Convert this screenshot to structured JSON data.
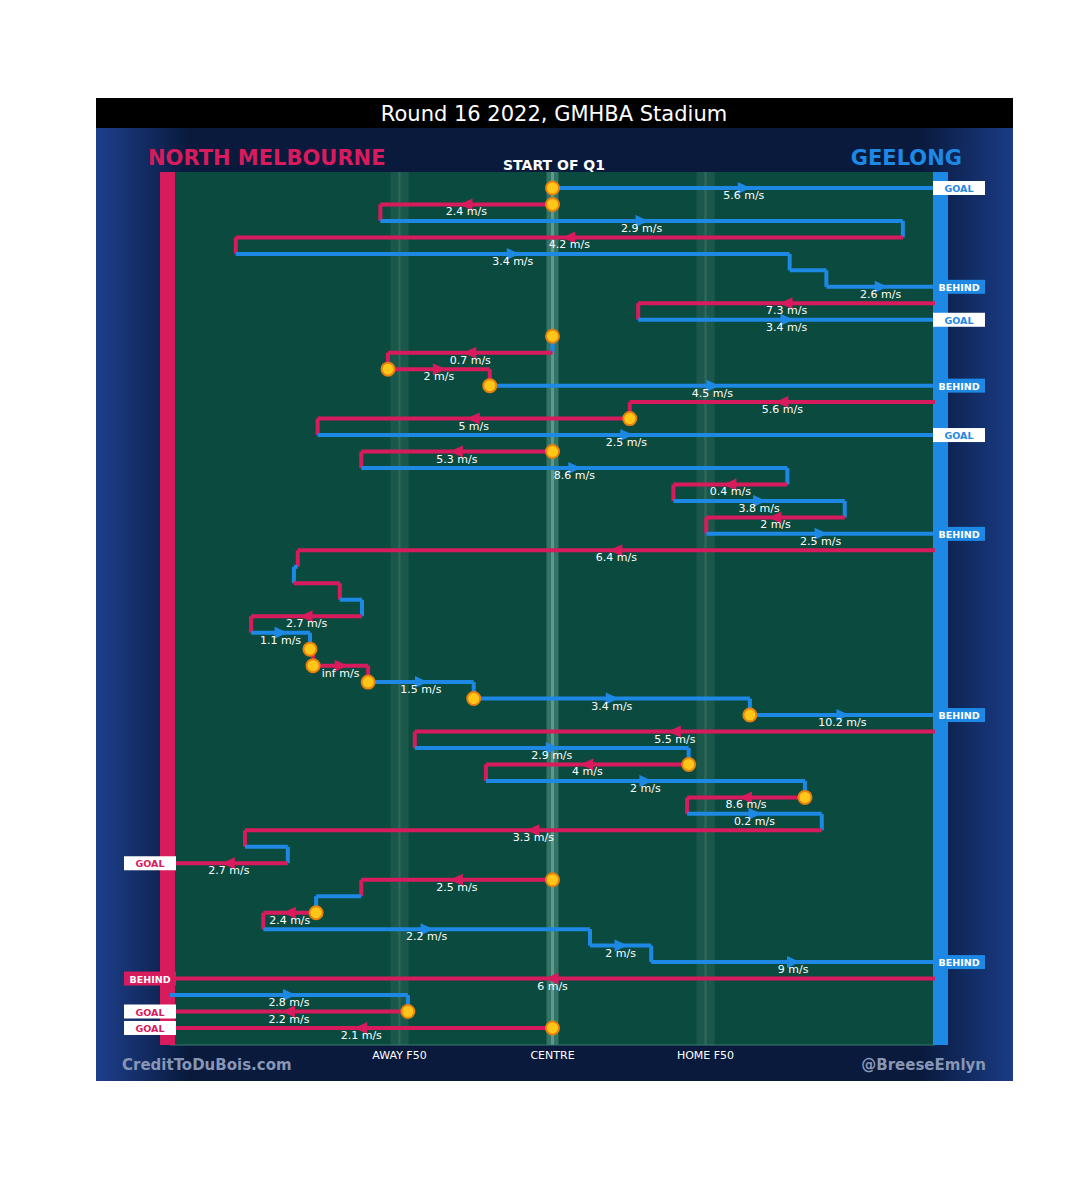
{
  "chart_data": {
    "type": "possession-chain",
    "title": "Round 16 2022, GMHBA Stadium",
    "subtitle": "START OF Q1",
    "teams": [
      {
        "name": "NORTH MELBOURNE",
        "color": "#d81b5c"
      },
      {
        "name": "GEELONG",
        "color": "#1e88e5"
      }
    ],
    "unit": "m/s",
    "xlim": [
      0,
      100
    ],
    "xticks": [
      {
        "value": 30,
        "label": "AWAY F50"
      },
      {
        "value": 50,
        "label": "CENTRE"
      },
      {
        "value": 70,
        "label": "HOME F50"
      }
    ],
    "segments": [
      {
        "team": "GEELONG",
        "from": 50,
        "to": 100,
        "speed": 5.6,
        "marker": "stoppage",
        "outcome": "GOAL"
      },
      {
        "team": "NORTH MELBOURNE",
        "from": 50,
        "to": 27.5,
        "speed": 2.4,
        "marker": "stoppage"
      },
      {
        "team": "GEELONG",
        "from": 27.5,
        "to": 95.8,
        "speed": 2.9
      },
      {
        "team": "NORTH MELBOURNE",
        "from": 95.8,
        "to": 8.6,
        "speed": 4.2
      },
      {
        "team": "GEELONG",
        "from": 8.6,
        "to": 81,
        "speed": 3.4
      },
      {
        "team": "GEELONG",
        "from": 81,
        "to": 85.8,
        "speed": null
      },
      {
        "team": "GEELONG",
        "from": 85.8,
        "to": 100,
        "speed": 2.6,
        "outcome": "BEHIND"
      },
      {
        "team": "NORTH MELBOURNE",
        "from": 100,
        "to": 61.2,
        "speed": 7.3
      },
      {
        "team": "GEELONG",
        "from": 61.2,
        "to": 100,
        "speed": 3.4,
        "outcome": "GOAL"
      },
      {
        "team": "GEELONG",
        "from": 50,
        "to": 50,
        "speed": null,
        "marker": "stoppage"
      },
      {
        "team": "NORTH MELBOURNE",
        "from": 50,
        "to": 28.5,
        "speed": 0.7
      },
      {
        "team": "NORTH MELBOURNE",
        "from": 28.5,
        "to": 41.8,
        "speed": 2,
        "marker": "stoppage"
      },
      {
        "team": "GEELONG",
        "from": 41.8,
        "to": 100,
        "speed": 4.5,
        "marker": "stoppage",
        "outcome": "BEHIND"
      },
      {
        "team": "NORTH MELBOURNE",
        "from": 100,
        "to": 60.1,
        "speed": 5.6
      },
      {
        "team": "NORTH MELBOURNE",
        "from": 60.1,
        "to": 19.3,
        "speed": 5,
        "marker": "stoppage"
      },
      {
        "team": "GEELONG",
        "from": 19.3,
        "to": 100,
        "speed": 2.5,
        "outcome": "GOAL"
      },
      {
        "team": "NORTH MELBOURNE",
        "from": 50,
        "to": 25,
        "speed": 5.3,
        "marker": "stoppage"
      },
      {
        "team": "GEELONG",
        "from": 25,
        "to": 80.7,
        "speed": 8.6
      },
      {
        "team": "NORTH MELBOURNE",
        "from": 80.7,
        "to": 65.8,
        "speed": 0.4
      },
      {
        "team": "GEELONG",
        "from": 65.8,
        "to": 88.2,
        "speed": 3.8
      },
      {
        "team": "NORTH MELBOURNE",
        "from": 88.2,
        "to": 70.1,
        "speed": 2
      },
      {
        "team": "GEELONG",
        "from": 70.1,
        "to": 100,
        "speed": 2.5,
        "outcome": "BEHIND"
      },
      {
        "team": "NORTH MELBOURNE",
        "from": 100,
        "to": 16.7,
        "speed": 6.4
      },
      {
        "team": "GEELONG",
        "from": 16.7,
        "to": 16.2,
        "speed": null
      },
      {
        "team": "NORTH MELBOURNE",
        "from": 16.2,
        "to": 22.2,
        "speed": null
      },
      {
        "team": "GEELONG",
        "from": 22.2,
        "to": 25.1,
        "speed": null
      },
      {
        "team": "NORTH MELBOURNE",
        "from": 25.1,
        "to": 10.6,
        "speed": 2.7
      },
      {
        "team": "GEELONG",
        "from": 10.6,
        "to": 18.3,
        "speed": 1.1
      },
      {
        "team": "NORTH MELBOURNE",
        "from": 18.3,
        "to": 18.7,
        "speed": null,
        "marker": "stoppage"
      },
      {
        "team": "NORTH MELBOURNE",
        "from": 18.7,
        "to": 25.9,
        "speed": "inf",
        "marker": "stoppage"
      },
      {
        "team": "GEELONG",
        "from": 25.9,
        "to": 39.7,
        "speed": 1.5,
        "marker": "stoppage"
      },
      {
        "team": "GEELONG",
        "from": 39.7,
        "to": 75.8,
        "speed": 3.4,
        "marker": "stoppage"
      },
      {
        "team": "GEELONG",
        "from": 75.8,
        "to": 100,
        "speed": 10.2,
        "marker": "stoppage",
        "outcome": "BEHIND"
      },
      {
        "team": "NORTH MELBOURNE",
        "from": 100,
        "to": 32,
        "speed": 5.5
      },
      {
        "team": "GEELONG",
        "from": 32,
        "to": 67.8,
        "speed": 2.9
      },
      {
        "team": "NORTH MELBOURNE",
        "from": 67.8,
        "to": 41.3,
        "speed": 4,
        "marker": "stoppage"
      },
      {
        "team": "GEELONG",
        "from": 41.3,
        "to": 83,
        "speed": 2
      },
      {
        "team": "NORTH MELBOURNE",
        "from": 83,
        "to": 67.6,
        "speed": 8.6,
        "marker": "stoppage"
      },
      {
        "team": "GEELONG",
        "from": 67.6,
        "to": 85.2,
        "speed": 0.2
      },
      {
        "team": "NORTH MELBOURNE",
        "from": 85.2,
        "to": 9.8,
        "speed": 3.3
      },
      {
        "team": "GEELONG",
        "from": 9.8,
        "to": 15.4,
        "speed": null
      },
      {
        "team": "NORTH MELBOURNE",
        "from": 15.4,
        "to": 0,
        "speed": 2.7,
        "outcome": "GOAL"
      },
      {
        "team": "NORTH MELBOURNE",
        "from": 50,
        "to": 25,
        "speed": 2.5,
        "marker": "stoppage"
      },
      {
        "team": "GEELONG",
        "from": 25,
        "to": 19.1,
        "speed": null
      },
      {
        "team": "NORTH MELBOURNE",
        "from": 19.1,
        "to": 12.2,
        "speed": 2.4,
        "marker": "stoppage"
      },
      {
        "team": "GEELONG",
        "from": 12.2,
        "to": 54.9,
        "speed": 2.2
      },
      {
        "team": "GEELONG",
        "from": 54.9,
        "to": 62.9,
        "speed": 2
      },
      {
        "team": "GEELONG",
        "from": 62.9,
        "to": 100,
        "speed": 9,
        "outcome": "BEHIND"
      },
      {
        "team": "NORTH MELBOURNE",
        "from": 100,
        "to": 0,
        "speed": 6,
        "outcome": "BEHIND"
      },
      {
        "team": "GEELONG",
        "from": 0,
        "to": 31.1,
        "speed": 2.8
      },
      {
        "team": "NORTH MELBOURNE",
        "from": 31.1,
        "to": 0,
        "speed": 2.2,
        "marker": "stoppage",
        "outcome": "GOAL"
      },
      {
        "team": "NORTH MELBOURNE",
        "from": 50,
        "to": 0,
        "speed": 2.1,
        "marker": "stoppage",
        "outcome": "GOAL"
      }
    ],
    "credits": [
      "CreditToDuBois.com",
      "@BreeseEmlyn"
    ]
  }
}
